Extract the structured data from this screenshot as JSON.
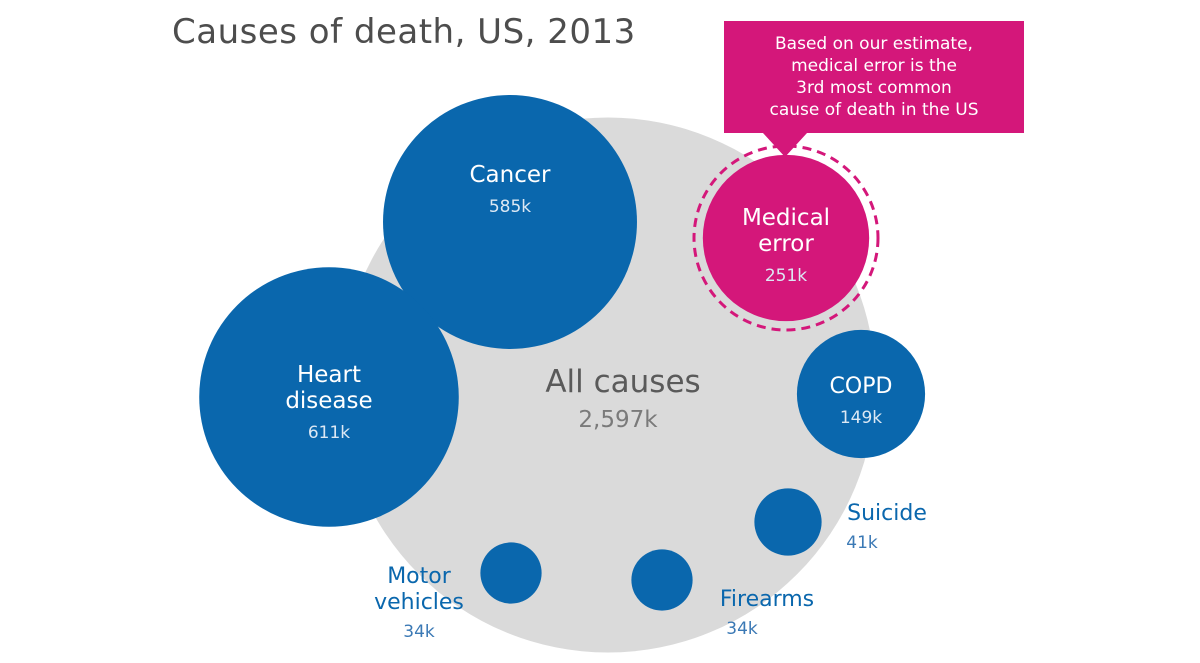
{
  "chart_data": {
    "type": "bubble",
    "title": "Causes of death, US, 2013",
    "unit_suffix": "k",
    "total": {
      "label": "All causes",
      "value_label": "2,597k",
      "value": 2597
    },
    "series": [
      {
        "name": "Cancer",
        "lines": [
          "Cancer"
        ],
        "value": 585,
        "value_label": "585k",
        "highlight": false
      },
      {
        "name": "Heart disease",
        "lines": [
          "Heart",
          "disease"
        ],
        "value": 611,
        "value_label": "611k",
        "highlight": false
      },
      {
        "name": "Medical error",
        "lines": [
          "Medical",
          "error"
        ],
        "value": 251,
        "value_label": "251k",
        "highlight": true
      },
      {
        "name": "COPD",
        "lines": [
          "COPD"
        ],
        "value": 149,
        "value_label": "149k",
        "highlight": false
      },
      {
        "name": "Suicide",
        "lines": [
          "Suicide"
        ],
        "value": 41,
        "value_label": "41k",
        "highlight": false
      },
      {
        "name": "Firearms",
        "lines": [
          "Firearms"
        ],
        "value": 34,
        "value_label": "34k",
        "highlight": false
      },
      {
        "name": "Motor vehicles",
        "lines": [
          "Motor",
          "vehicles"
        ],
        "value": 34,
        "value_label": "34k",
        "highlight": false
      }
    ],
    "annotation": {
      "lines": [
        "Based on our estimate,",
        "medical error is the",
        "3rd most common",
        "cause of death in the US"
      ]
    },
    "colors": {
      "bubble": "#0a67ad",
      "highlight": "#d4177a",
      "total_bubble": "#dadada",
      "total_text": "#5a5a5a",
      "total_value_text": "#7a7a7a",
      "outside_value_text": "#3b79b5",
      "inside_text": "#ffffff",
      "inside_value_text": "#dce8f4"
    }
  }
}
